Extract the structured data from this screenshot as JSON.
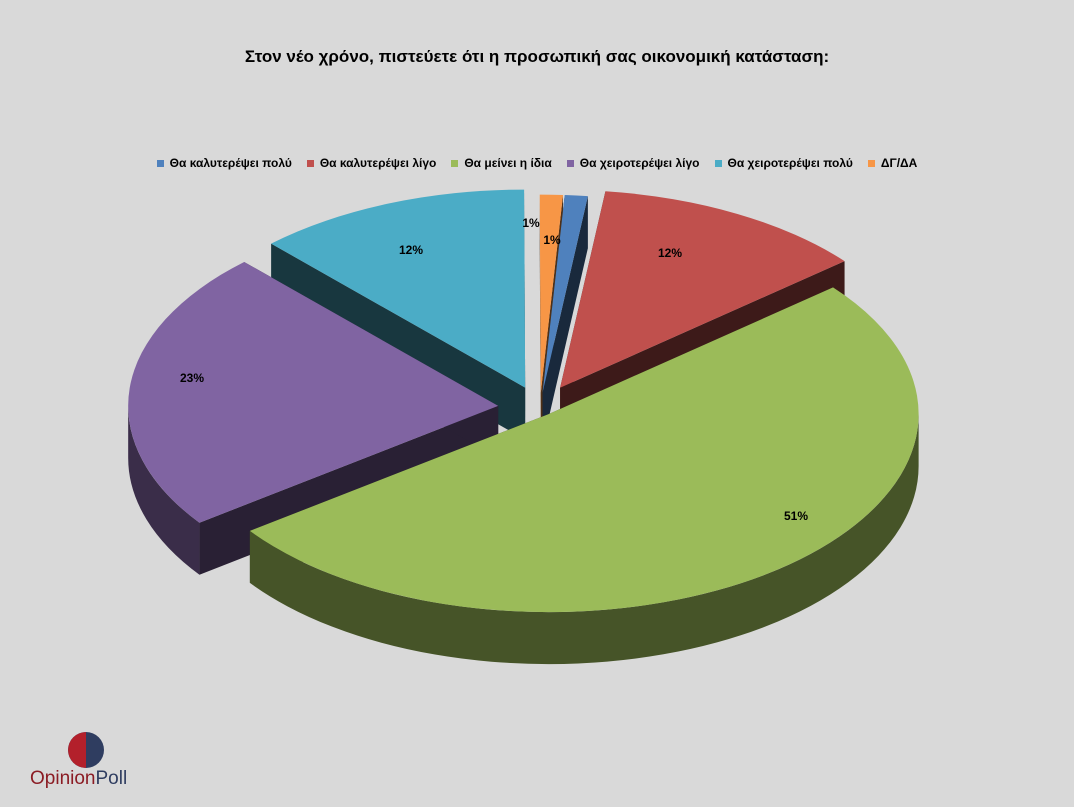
{
  "chart_data": {
    "type": "pie",
    "title": "Στον νέο χρόνο, πιστεύετε ότι η προσωπική σας οικονομική κατάσταση:",
    "legend_position": "top",
    "three_d": true,
    "exploded": true,
    "slices": [
      {
        "label": "Θα καλυτερέψει πολύ",
        "value": 1,
        "value_label": "1%",
        "color": "#4f81bd"
      },
      {
        "label": "Θα καλυτερέψει λίγο",
        "value": 12,
        "value_label": "12%",
        "color": "#c0504d"
      },
      {
        "label": "Θα μείνει η ίδια",
        "value": 51,
        "value_label": "51%",
        "color": "#9bbb59"
      },
      {
        "label": "Θα χειροτερέψει λίγο",
        "value": 23,
        "value_label": "23%",
        "color": "#8064a2"
      },
      {
        "label": "Θα χειροτερέψει πολύ",
        "value": 12,
        "value_label": "12%",
        "color": "#4bacc6"
      },
      {
        "label": "ΔΓ/ΔΑ",
        "value": 1,
        "value_label": "1%",
        "color": "#f79646"
      }
    ]
  },
  "logo": {
    "part1": "Opinion",
    "part2": "Poll"
  }
}
